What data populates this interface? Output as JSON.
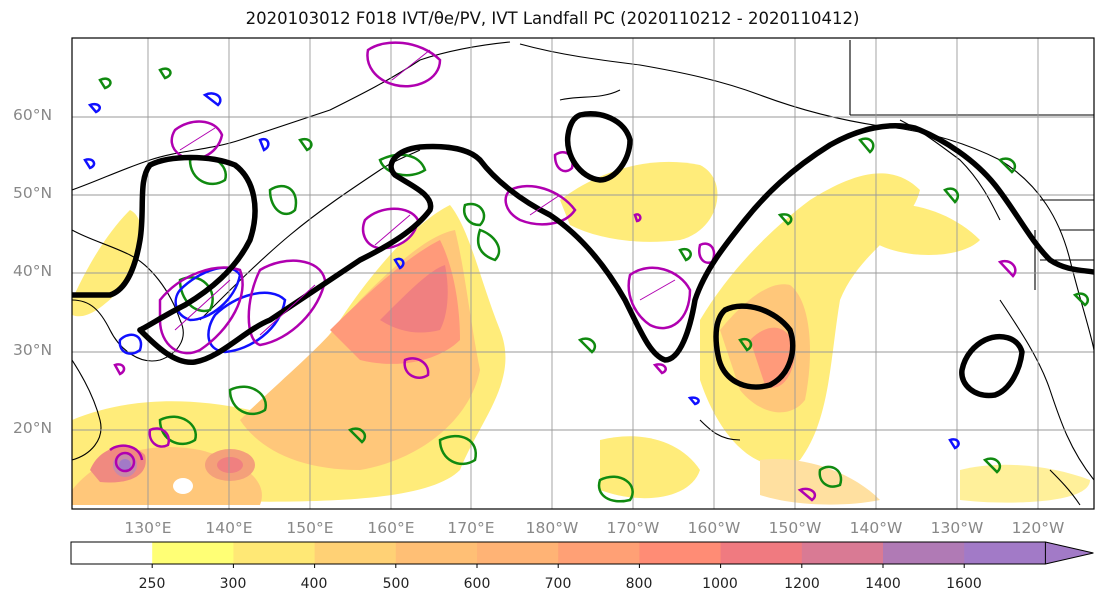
{
  "title": "2020103012 F018 IVT/θe/PV, IVT Landfall PC (2020110212 - 2020110412)",
  "lat_labels": [
    "60°N",
    "50°N",
    "40°N",
    "30°N",
    "20°N"
  ],
  "lon_labels": [
    "130°E",
    "140°E",
    "150°E",
    "160°E",
    "170°E",
    "180°W",
    "170°W",
    "160°W",
    "150°W",
    "140°W",
    "130°W",
    "120°W"
  ],
  "colorbar": {
    "ticks": [
      "250",
      "300",
      "400",
      "500",
      "600",
      "700",
      "800",
      "1000",
      "1200",
      "1400",
      "1600"
    ],
    "colors": [
      "#ffffff",
      "#ffff75",
      "#ffe875",
      "#ffd175",
      "#ffbf75",
      "#ffb375",
      "#ffa075",
      "#ff8c75",
      "#f07a80",
      "#d97a94",
      "#b07ab5",
      "#a27ac7"
    ]
  },
  "colors": {
    "ivt_fill": "#ffe36e",
    "contour_black": "#000000",
    "contour_magenta": "#b000b0",
    "contour_green": "#108a10",
    "contour_blue": "#1010ff",
    "grid": "#9a9a9a",
    "coast": "#000000"
  }
}
